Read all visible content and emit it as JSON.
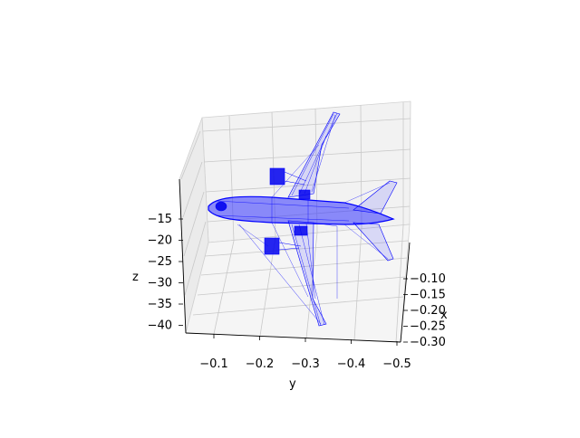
{
  "chart_data": {
    "type": "scatter",
    "projection": "3d",
    "description_of_marks": "wireframe point cloud of an airplane (blue mesh edges and vertices)",
    "color": "#0000ff",
    "axes": {
      "x": {
        "label": "x",
        "ticks": [
          "−0.10",
          "−0.15",
          "−0.20",
          "−0.25",
          "−0.30"
        ],
        "range": [
          -0.3,
          -0.1
        ]
      },
      "y": {
        "label": "y",
        "ticks": [
          "−0.1",
          "−0.2",
          "−0.3",
          "−0.4",
          "−0.5"
        ],
        "range": [
          -0.5,
          -0.1
        ]
      },
      "z": {
        "label": "z",
        "ticks": [
          "−15",
          "−20",
          "−25",
          "−30",
          "−35",
          "−40"
        ],
        "range": [
          -42,
          -12
        ]
      }
    },
    "grid": true,
    "panes": "light gray",
    "legend": "none"
  }
}
